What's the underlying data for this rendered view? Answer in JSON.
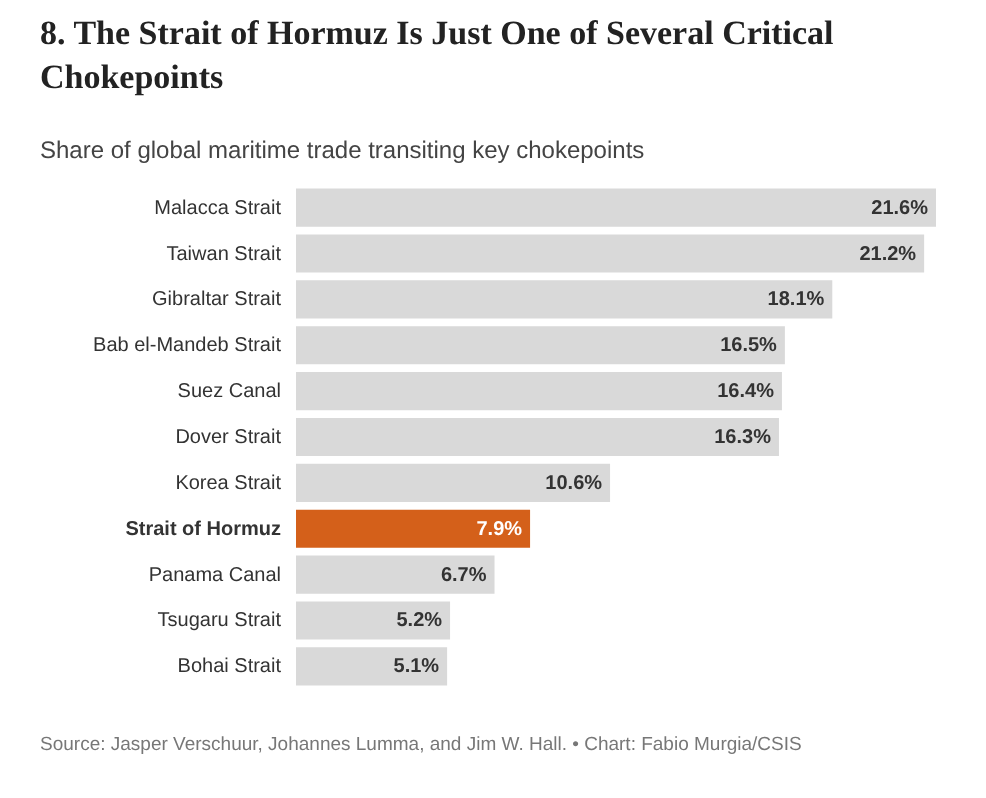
{
  "chart_data": {
    "type": "bar",
    "orientation": "horizontal",
    "title": "8. The Strait of Hormuz Is Just One of Several Critical Chokepoints",
    "subtitle": "Share of global maritime trade transiting key chokepoints",
    "categories": [
      "Malacca Strait",
      "Taiwan Strait",
      "Gibraltar Strait",
      "Bab el-Mandeb Strait",
      "Suez Canal",
      "Dover Strait",
      "Korea Strait",
      "Strait of Hormuz",
      "Panama Canal",
      "Tsugaru Strait",
      "Bohai Strait"
    ],
    "values": [
      21.6,
      21.2,
      18.1,
      16.5,
      16.4,
      16.3,
      10.6,
      7.9,
      6.7,
      5.2,
      5.1
    ],
    "value_labels": [
      "21.6%",
      "21.2%",
      "18.1%",
      "16.5%",
      "16.4%",
      "16.3%",
      "10.6%",
      "7.9%",
      "6.7%",
      "5.2%",
      "5.1%"
    ],
    "colors": [
      "#d9d9d9",
      "#d9d9d9",
      "#d9d9d9",
      "#d9d9d9",
      "#d9d9d9",
      "#d9d9d9",
      "#d9d9d9",
      "#d4601a",
      "#d9d9d9",
      "#d9d9d9",
      "#d9d9d9"
    ],
    "annotations": [
      "Source: Jasper Verschuur, Johannes Lumma, and Jim W. Hall. • Chart: Fabio Murgia/CSIS"
    ]
  }
}
